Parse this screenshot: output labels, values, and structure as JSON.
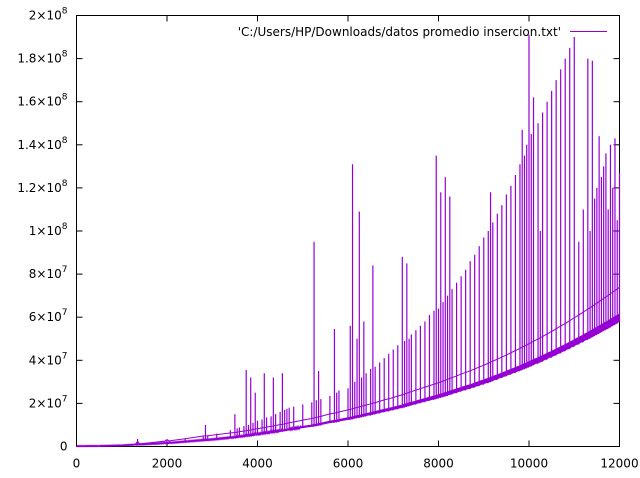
{
  "chart_data": {
    "type": "line",
    "grid": false,
    "legend_placement": "top-right",
    "xlim": [
      0,
      12000
    ],
    "ylim": [
      0,
      200000000
    ],
    "x_ticks": [
      {
        "value": 0,
        "label": "0"
      },
      {
        "value": 2000,
        "label": "2000"
      },
      {
        "value": 4000,
        "label": "4000"
      },
      {
        "value": 6000,
        "label": "6000"
      },
      {
        "value": 8000,
        "label": "8000"
      },
      {
        "value": 10000,
        "label": "10000"
      },
      {
        "value": 12000,
        "label": "12000"
      }
    ],
    "y_ticks": [
      {
        "value": 0,
        "mantissa": "0",
        "exponent": ""
      },
      {
        "value": 20000000,
        "mantissa": "2×10",
        "exponent": "7"
      },
      {
        "value": 40000000,
        "mantissa": "4×10",
        "exponent": "7"
      },
      {
        "value": 60000000,
        "mantissa": "6×10",
        "exponent": "7"
      },
      {
        "value": 80000000,
        "mantissa": "8×10",
        "exponent": "7"
      },
      {
        "value": 100000000,
        "mantissa": "1×10",
        "exponent": "8"
      },
      {
        "value": 120000000,
        "mantissa": "1.2×10",
        "exponent": "8"
      },
      {
        "value": 140000000,
        "mantissa": "1.4×10",
        "exponent": "8"
      },
      {
        "value": 160000000,
        "mantissa": "1.6×10",
        "exponent": "8"
      },
      {
        "value": 180000000,
        "mantissa": "1.8×10",
        "exponent": "8"
      },
      {
        "value": 200000000,
        "mantissa": "2×10",
        "exponent": "8"
      }
    ],
    "series": [
      {
        "name": "'C:/Users/HP/Downloads/datos promedio insercion.txt'",
        "color": "#9400d3",
        "x": [
          0,
          500,
          1000,
          1300,
          1350,
          1400,
          1700,
          1950,
          2000,
          2050,
          2400,
          2800,
          2850,
          2900,
          3100,
          3400,
          3500,
          3550,
          3600,
          3700,
          3750,
          3800,
          3850,
          3900,
          3950,
          4000,
          4100,
          4150,
          4200,
          4300,
          4350,
          4400,
          4500,
          4550,
          4600,
          4650,
          4700,
          4800,
          5000,
          5200,
          5250,
          5300,
          5350,
          5400,
          5600,
          5700,
          5750,
          5800,
          6000,
          6050,
          6100,
          6150,
          6200,
          6250,
          6300,
          6350,
          6400,
          6500,
          6550,
          6600,
          6700,
          6800,
          6900,
          7000,
          7100,
          7200,
          7250,
          7300,
          7350,
          7400,
          7500,
          7600,
          7700,
          7800,
          7900,
          7950,
          8000,
          8050,
          8100,
          8150,
          8200,
          8250,
          8300,
          8400,
          8500,
          8600,
          8700,
          8800,
          8900,
          9000,
          9100,
          9150,
          9200,
          9300,
          9400,
          9500,
          9600,
          9700,
          9800,
          9850,
          9900,
          9950,
          10000,
          10050,
          10100,
          10200,
          10250,
          10300,
          10400,
          10500,
          10600,
          10700,
          10800,
          10900,
          11000,
          11100,
          11200,
          11300,
          11350,
          11400,
          11450,
          11500,
          11550,
          11600,
          11650,
          11700,
          11750,
          11800,
          11850,
          11900,
          11950,
          12000
        ],
        "y": [
          0,
          80000,
          600000,
          1000000,
          3500000,
          1200000,
          1900000,
          2500000,
          3200000,
          2600000,
          3600000,
          5000000,
          10000000,
          5200000,
          6000000,
          7600000,
          15000000,
          8400000,
          8800000,
          9500000,
          35500000,
          10000000,
          32000000,
          11000000,
          25000000,
          12000000,
          12500000,
          34000000,
          13500000,
          14000000,
          32000000,
          15000000,
          16000000,
          34000000,
          17000000,
          17500000,
          18000000,
          18500000,
          19500000,
          20500000,
          95000000,
          21500000,
          35000000,
          22000000,
          23500000,
          54500000,
          25000000,
          26000000,
          27000000,
          56000000,
          131000000,
          30000000,
          50000000,
          109000000,
          32000000,
          58000000,
          34000000,
          36000000,
          84000000,
          37000000,
          39000000,
          41000000,
          43000000,
          45000000,
          47000000,
          88000000,
          49000000,
          85000000,
          50000000,
          52000000,
          54000000,
          56000000,
          58000000,
          61000000,
          63000000,
          135000000,
          64000000,
          118000000,
          67000000,
          125000000,
          70000000,
          116000000,
          73000000,
          76000000,
          79000000,
          82000000,
          86000000,
          89000000,
          93000000,
          97000000,
          100000000,
          118000000,
          104000000,
          108000000,
          112000000,
          117000000,
          121000000,
          126000000,
          131000000,
          147000000,
          135000000,
          140000000,
          191000000,
          145000000,
          162000000,
          150000000,
          100000000,
          155000000,
          160000000,
          165000000,
          170000000,
          175000000,
          180000000,
          185000000,
          190000000,
          95000000,
          110000000,
          180000000,
          100000000,
          179000000,
          115000000,
          120000000,
          144000000,
          125000000,
          130000000,
          136000000,
          110000000,
          140000000,
          120000000,
          143000000,
          105000000,
          127000000
        ],
        "baseline": [
          0,
          75000,
          300000,
          680000,
          680000,
          730000,
          1000000,
          1370000,
          1400000,
          1420000,
          2000000,
          2700000,
          2750000,
          2800000,
          3200000,
          3800000,
          4000000,
          4100000,
          4300000,
          4500000,
          4700000,
          4800000,
          4900000,
          5100000,
          5300000,
          5400000,
          5700000,
          5800000,
          6000000,
          6300000,
          6400000,
          6600000,
          6900000,
          7000000,
          7200000,
          7400000,
          7600000,
          7900000,
          8600000,
          9200000,
          9400000,
          9600000,
          9800000,
          10000000,
          10900000,
          11200000,
          11400000,
          11600000,
          12400000,
          12600000,
          12800000,
          13100000,
          13300000,
          13500000,
          13700000,
          14000000,
          14200000,
          14600000,
          14900000,
          15100000,
          15600000,
          16100000,
          16500000,
          17000000,
          17500000,
          18000000,
          18300000,
          18600000,
          18900000,
          19200000,
          19700000,
          20300000,
          20800000,
          21400000,
          21900000,
          22200000,
          22500000,
          22800000,
          23100000,
          23400000,
          23700000,
          24100000,
          24400000,
          25000000,
          25700000,
          26300000,
          26900000,
          27600000,
          28300000,
          29000000,
          29700000,
          30100000,
          30500000,
          31200000,
          32000000,
          32800000,
          33600000,
          34400000,
          35200000,
          35700000,
          36100000,
          36500000,
          37000000,
          37400000,
          37900000,
          38700000,
          39200000,
          39600000,
          40600000,
          41500000,
          42500000,
          43500000,
          44500000,
          45500000,
          46600000,
          47600000,
          48700000,
          49800000,
          50300000,
          50900000,
          51500000,
          52000000,
          52600000,
          53200000,
          53800000,
          54300000,
          54900000,
          55500000,
          56100000,
          56700000,
          57300000,
          57900000
        ]
      }
    ]
  }
}
